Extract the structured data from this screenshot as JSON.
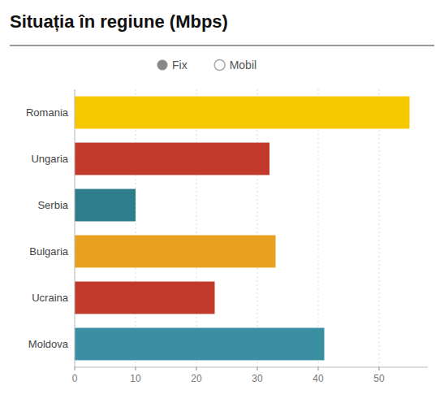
{
  "chart_data": {
    "type": "bar",
    "orientation": "horizontal",
    "title": "Situația în regiune (Mbps)",
    "categories": [
      "Moldova",
      "Ucraina",
      "Bulgaria",
      "Serbia",
      "Ungaria",
      "Romania"
    ],
    "values": [
      41,
      23,
      33,
      10,
      32,
      55
    ],
    "colors": [
      "#3a8fa3",
      "#c0392b",
      "#e8a020",
      "#2e7d8a",
      "#c0392b",
      "#f5c800"
    ],
    "xlim": [
      0,
      58
    ],
    "xticks": [
      0,
      10,
      20,
      30,
      40,
      50
    ],
    "grid": true,
    "annotations": [
      {
        "text": "Fix",
        "marker": "filled",
        "color": "#888888"
      },
      {
        "text": "Mobil",
        "marker": "hollow",
        "color": "#aaaaaa"
      }
    ]
  }
}
